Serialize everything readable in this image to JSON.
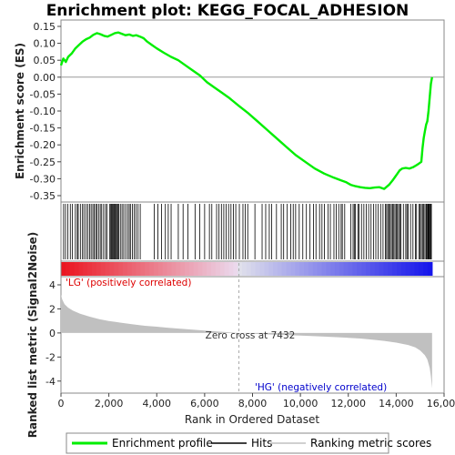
{
  "chart_data": {
    "type": "line",
    "title": "Enrichment plot: KEGG_FOCAL_ADHESION",
    "ylabel_top": "Enrichment score (ES)",
    "ylabel_bottom": "Ranked list metric (Signal2Noise)",
    "xlabel": "Rank in Ordered Dataset",
    "xlim": [
      0,
      16000
    ],
    "x_ticks": [
      0,
      2000,
      4000,
      6000,
      8000,
      10000,
      12000,
      14000,
      16000
    ],
    "x_tick_labels": [
      "0",
      "2,000",
      "4,000",
      "6,000",
      "8,000",
      "10,000",
      "12,000",
      "14,000",
      "16,000"
    ],
    "es_ylim": [
      -0.35,
      0.15
    ],
    "es_ticks": [
      0.15,
      0.1,
      0.05,
      0.0,
      -0.05,
      -0.1,
      -0.15,
      -0.2,
      -0.25,
      -0.3,
      -0.35
    ],
    "es_tick_labels": [
      "0.15",
      "0.10",
      "0.05",
      "0.00",
      "-0.05",
      "-0.10",
      "-0.15",
      "-0.20",
      "-0.25",
      "-0.30",
      "-0.35"
    ],
    "metric_ylim": [
      -5,
      4
    ],
    "metric_ticks": [
      4,
      2,
      0,
      -2,
      -4
    ],
    "metric_tick_labels": [
      "4",
      "2",
      "0",
      "-2",
      "-4"
    ],
    "series": [
      {
        "name": "Enrichment profile",
        "color": "#00ee00",
        "x": [
          0,
          100,
          200,
          300,
          450,
          600,
          750,
          900,
          1050,
          1200,
          1350,
          1500,
          1650,
          1800,
          1950,
          2100,
          2250,
          2400,
          2550,
          2700,
          2850,
          3000,
          3150,
          3300,
          3450,
          3600,
          3800,
          4000,
          4300,
          4600,
          4900,
          5200,
          5500,
          5800,
          6100,
          6400,
          6700,
          7000,
          7432,
          7800,
          8200,
          8600,
          9000,
          9400,
          9800,
          10200,
          10600,
          11000,
          11400,
          11700,
          11900,
          12100,
          12300,
          12500,
          12700,
          12900,
          13100,
          13300,
          13500,
          13700,
          13850,
          13950,
          14050,
          14150,
          14250,
          14400,
          14550,
          14700,
          14850,
          14950,
          15050,
          15100,
          15150,
          15200,
          15250,
          15300,
          15350,
          15400,
          15450,
          15500
        ],
        "y": [
          0.035,
          0.055,
          0.045,
          0.06,
          0.07,
          0.085,
          0.095,
          0.105,
          0.112,
          0.117,
          0.125,
          0.13,
          0.127,
          0.122,
          0.12,
          0.125,
          0.13,
          0.132,
          0.128,
          0.124,
          0.126,
          0.122,
          0.124,
          0.12,
          0.115,
          0.105,
          0.095,
          0.085,
          0.072,
          0.06,
          0.05,
          0.035,
          0.02,
          0.005,
          -0.015,
          -0.03,
          -0.045,
          -0.06,
          -0.085,
          -0.105,
          -0.13,
          -0.155,
          -0.18,
          -0.205,
          -0.23,
          -0.25,
          -0.27,
          -0.285,
          -0.297,
          -0.305,
          -0.31,
          -0.318,
          -0.322,
          -0.325,
          -0.327,
          -0.328,
          -0.326,
          -0.325,
          -0.33,
          -0.318,
          -0.305,
          -0.295,
          -0.285,
          -0.275,
          -0.27,
          -0.268,
          -0.27,
          -0.266,
          -0.26,
          -0.255,
          -0.25,
          -0.21,
          -0.18,
          -0.16,
          -0.14,
          -0.13,
          -0.1,
          -0.06,
          -0.02,
          0.0
        ]
      }
    ],
    "hits_label": "Hits",
    "ranking_label": "Ranking metric scores",
    "annotations": {
      "positive": "'LG' (positively correlated)",
      "negative": "'HG' (negatively correlated)",
      "zero_cross": "Zero cross at 7432",
      "zero_cross_rank": 7432
    },
    "colors": {
      "es_line": "#00ee00",
      "hit_line": "#000000",
      "metric_fill": "#c0c0c0",
      "positive_text": "#dd0000",
      "negative_text": "#0000cc",
      "zero_line": "#bbbbbb"
    },
    "metric_profile": {
      "x": [
        0,
        50,
        150,
        300,
        500,
        800,
        1200,
        1600,
        2000,
        2500,
        3000,
        3500,
        4000,
        4500,
        5000,
        5500,
        6000,
        6500,
        7000,
        7432,
        8000,
        9000,
        10000,
        11000,
        12000,
        12500,
        13000,
        13500,
        14000,
        14500,
        14800,
        15000,
        15200,
        15300,
        15400,
        15450,
        15500
      ],
      "y": [
        3.2,
        2.8,
        2.4,
        2.1,
        1.85,
        1.6,
        1.35,
        1.15,
        1.0,
        0.85,
        0.72,
        0.6,
        0.52,
        0.43,
        0.35,
        0.28,
        0.2,
        0.13,
        0.06,
        0.0,
        -0.06,
        -0.15,
        -0.22,
        -0.3,
        -0.4,
        -0.46,
        -0.55,
        -0.66,
        -0.8,
        -1.0,
        -1.2,
        -1.45,
        -1.85,
        -2.2,
        -2.9,
        -3.6,
        -4.6
      ]
    },
    "hit_ranks": [
      110,
      190,
      290,
      390,
      480,
      600,
      680,
      720,
      810,
      900,
      960,
      1050,
      1120,
      1200,
      1260,
      1330,
      1390,
      1450,
      1500,
      1570,
      1640,
      1700,
      1780,
      1860,
      1920,
      2040,
      2080,
      2110,
      2150,
      2190,
      2220,
      2260,
      2290,
      2330,
      2370,
      2410,
      2480,
      2550,
      2620,
      2700,
      2780,
      2850,
      2900,
      2980,
      3060,
      3130,
      3220,
      3310,
      3900,
      4050,
      4200,
      4360,
      4480,
      4600,
      4900,
      5100,
      5300,
      5600,
      5800,
      6000,
      6200,
      6300,
      6500,
      6600,
      6700,
      6800,
      6900,
      7000,
      7100,
      7200,
      7300,
      7450,
      7600,
      7700,
      7800,
      8100,
      8400,
      8550,
      8700,
      8800,
      9000,
      9200,
      9300,
      9450,
      9600,
      9700,
      9800,
      9950,
      10100,
      10250,
      10400,
      10550,
      10650,
      10800,
      10900,
      11000,
      11150,
      11250,
      11400,
      11500,
      11600,
      11700,
      11750,
      11850,
      12100,
      12200,
      12250,
      12300,
      12400,
      12450,
      12550,
      12650,
      12750,
      12850,
      12950,
      13050,
      13150,
      13250,
      13350,
      13450,
      13550,
      13600,
      13650,
      13700,
      13750,
      13800,
      13850,
      13900,
      13950,
      14000,
      14050,
      14100,
      14150,
      14200,
      14300,
      14400,
      14450,
      14500,
      14600,
      14700,
      14800,
      14850,
      14950,
      15000,
      15050,
      15100,
      15150,
      15200,
      15250,
      15280,
      15320,
      15350,
      15380,
      15410,
      15440,
      15470
    ]
  },
  "legend": {
    "items": [
      {
        "label": "Enrichment profile",
        "color": "#00ee00"
      },
      {
        "label": "Hits",
        "color": "#000000"
      },
      {
        "label": "Ranking metric scores",
        "color": "#c0c0c0"
      }
    ]
  }
}
